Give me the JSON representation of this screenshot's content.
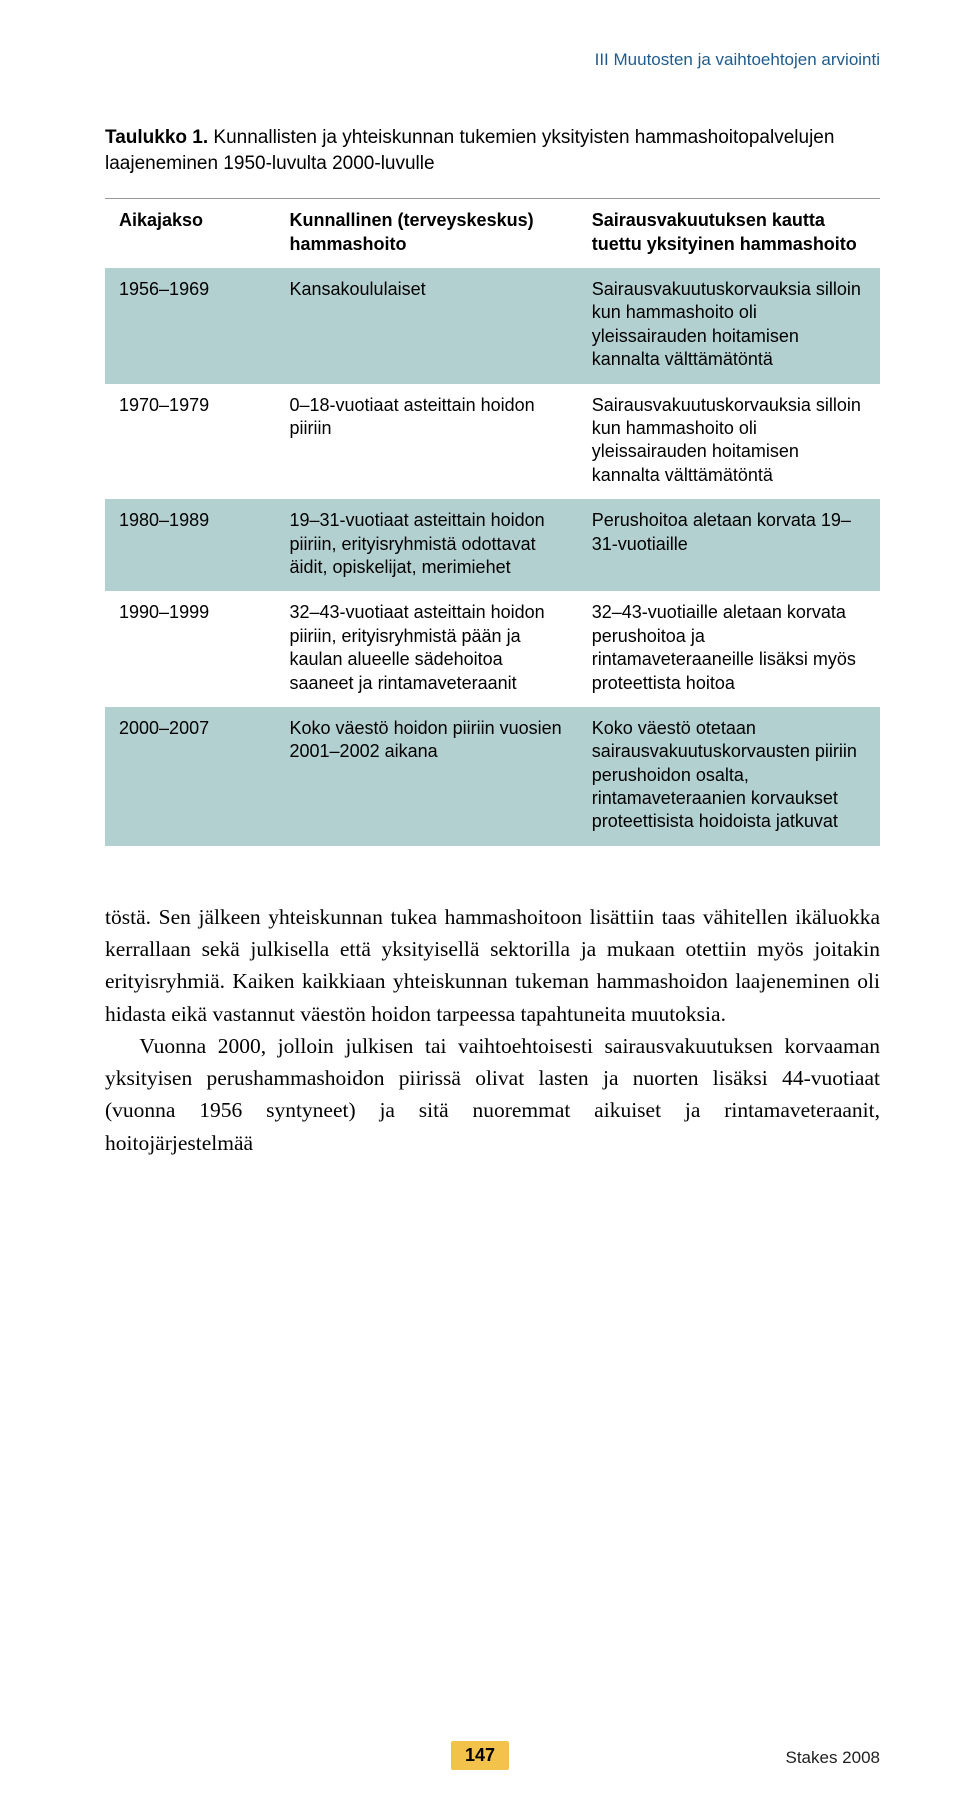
{
  "running_head": "III  Muutosten ja vaihtoehtojen arviointi",
  "caption_label": "Taulukko 1.",
  "caption_text": "Kunnallisten ja yhteiskunnan tukemien yksityisten hammashoitopalvelujen laajeneminen 1950-luvulta 2000-luvulle",
  "columns": [
    "Aikajakso",
    "Kunnallinen (terveyskeskus) hammashoito",
    "Sairausvakuutuksen kautta tuettu yksityinen hammashoito"
  ],
  "rows": [
    [
      "1956–1969",
      "Kansakoululaiset",
      "Sairausvakuutuskorvauksia silloin kun hammashoito oli yleissairauden hoitamisen kannalta välttämätöntä"
    ],
    [
      "1970–1979",
      "0–18-vuotiaat asteittain hoidon piiriin",
      "Sairausvakuutuskorvauksia silloin kun hammashoito oli yleissairauden hoitamisen kannalta välttämätöntä"
    ],
    [
      "1980–1989",
      "19–31-vuotiaat asteittain hoidon piiriin, erityisryhmistä odottavat äidit, opiskelijat, merimiehet",
      "Perushoitoa aletaan korvata 19–31-vuotiaille"
    ],
    [
      "1990–1999",
      "32–43-vuotiaat asteittain hoidon piiriin, erityisryhmistä pään ja kaulan alueelle sädehoitoa saaneet ja rintamaveteraanit",
      "32–43-vuotiaille aletaan korvata perushoitoa ja rintamaveteraaneille lisäksi myös proteettista hoitoa"
    ],
    [
      "2000–2007",
      "Koko väestö hoidon piiriin vuosien 2001–2002 aikana",
      "Koko väestö otetaan sairausvakuutuskorvausten piiriin perushoidon osalta, rintamaveteraanien korvaukset proteettisista hoidoista jatkuvat"
    ]
  ],
  "para1": "töstä. Sen jälkeen yhteiskunnan tukea hammashoitoon lisättiin taas vähitellen ikäluokka kerrallaan sekä julkisella että yksityisellä sektorilla ja mukaan otettiin myös joitakin erityisryhmiä. Kaiken kaikkiaan yhteiskunnan tukeman hammashoidon laajeneminen oli hidasta eikä vastannut väestön hoidon tarpeessa tapahtuneita muutoksia.",
  "para2": "Vuonna 2000, jolloin julkisen tai vaihtoehtoisesti sairausvakuutuksen korvaaman yksityisen perushammashoidon piirissä olivat lasten ja nuorten lisäksi 44-vuotiaat (vuonna 1956 syntyneet) ja sitä nuoremmat aikuiset ja rintamaveteraanit, hoitojärjestelmää",
  "page_number": "147",
  "publisher": "Stakes 2008",
  "colors": {
    "row_band": "#b3d0d0",
    "header_text": "#1f5b8e",
    "page_badge": "#f3c24a"
  }
}
